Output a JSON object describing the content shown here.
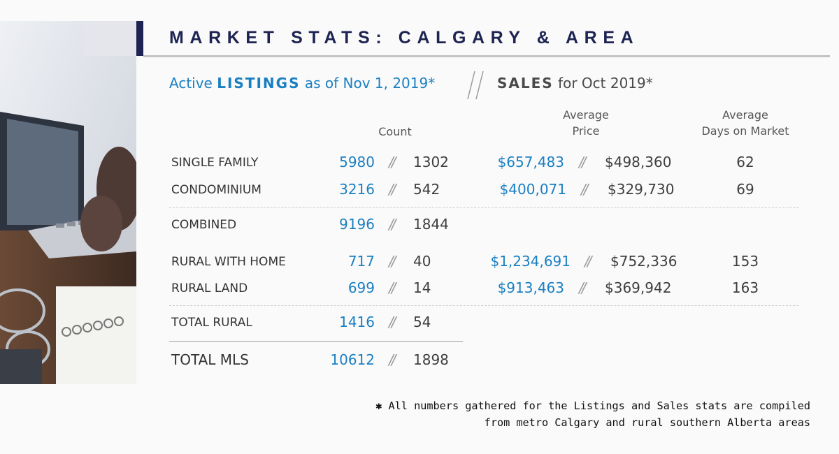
{
  "header": {
    "title": "MARKET STATS: CALGARY & AREA"
  },
  "subheader": {
    "listings_pre": "Active ",
    "listings_bold": "LISTINGS",
    "listings_post": " as of Nov 1, 2019*",
    "sales_bold": "SALES",
    "sales_post": " for Oct 2019*"
  },
  "columns": {
    "count": "Count",
    "avg_price_line1": "Average",
    "avg_price_line2": "Price",
    "avg_days_line1": "Average",
    "avg_days_line2": "Days on Market"
  },
  "separator": "//",
  "rows": [
    {
      "label": "SINGLE FAMILY",
      "listings": "5980",
      "sales": "1302",
      "list_price": "$657,483",
      "sale_price": "$498,360",
      "days": "62"
    },
    {
      "label": "CONDOMINIUM",
      "listings": "3216",
      "sales": "542",
      "list_price": "$400,071",
      "sale_price": "$329,730",
      "days": "69"
    },
    {
      "label": "COMBINED",
      "listings": "9196",
      "sales": "1844"
    },
    {
      "label": "RURAL WITH HOME",
      "listings": "717",
      "sales": "40",
      "list_price": "$1,234,691",
      "sale_price": "$752,336",
      "days": "153"
    },
    {
      "label": "RURAL LAND",
      "listings": "699",
      "sales": "14",
      "list_price": "$913,463",
      "sale_price": "$369,942",
      "days": "163"
    },
    {
      "label": "TOTAL RURAL",
      "listings": "1416",
      "sales": "54"
    },
    {
      "label": "TOTAL MLS",
      "listings": "10612",
      "sales": "1898"
    }
  ],
  "footnote": {
    "line1": "✱ All numbers gathered for the Listings and Sales stats are compiled",
    "line2": "from metro Calgary and rural southern Alberta areas"
  },
  "colors": {
    "navy": "#1d2452",
    "listing_blue": "#1a7fc2",
    "text_gray": "#3e3e3e"
  }
}
